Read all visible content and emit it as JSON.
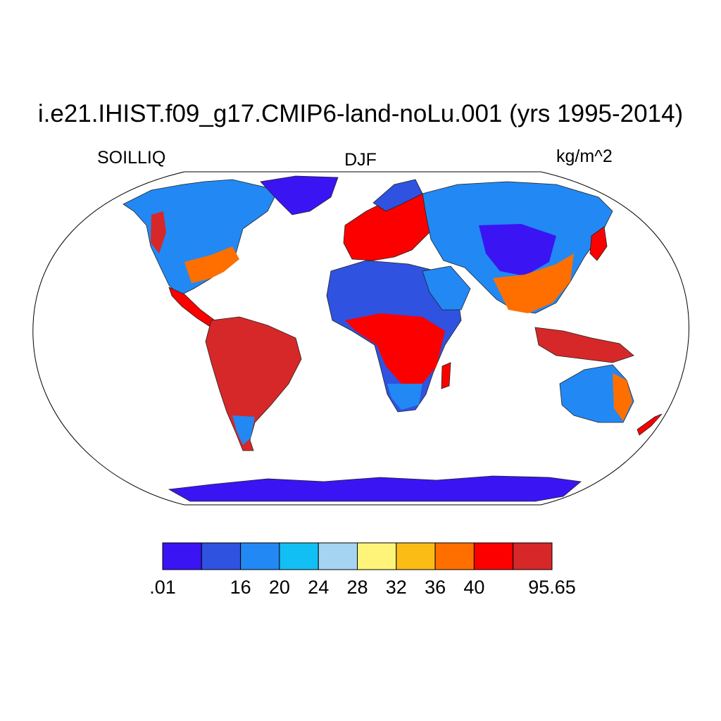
{
  "title": "i.e21.IHIST.f09_g17.CMIP6-land-noLu.001 (yrs 1995-2014)",
  "left_label": "SOILLIQ",
  "center_label": "DJF",
  "right_label": "kg/m^2",
  "projection": "Robinson",
  "colorbar": {
    "colors": [
      "#3b14f4",
      "#2f52e0",
      "#2288f4",
      "#12bff4",
      "#a4d4f2",
      "#fff47a",
      "#fbbc16",
      "#fe6f00",
      "#fc0000",
      "#d62828"
    ],
    "tick_labels": [
      ".01",
      "16",
      "20",
      "24",
      "28",
      "32",
      "36",
      "40",
      "95.65"
    ]
  }
}
